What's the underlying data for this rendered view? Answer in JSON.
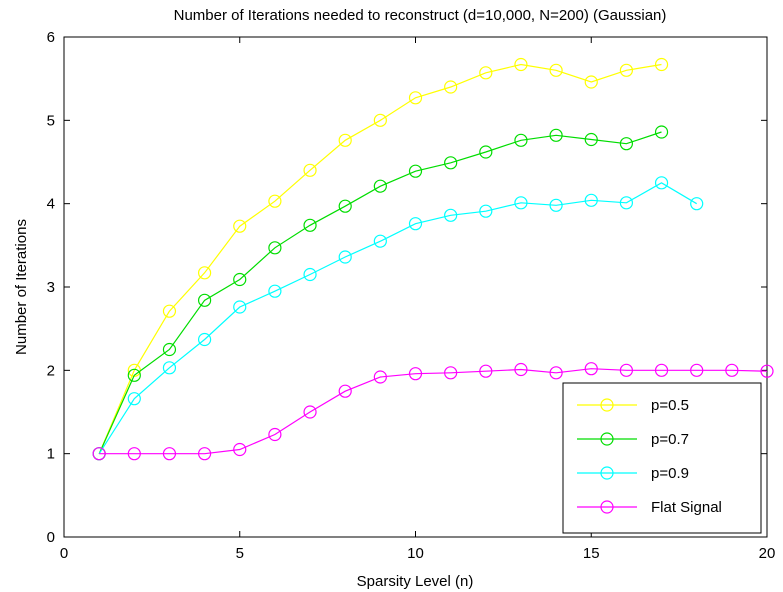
{
  "chart_data": {
    "type": "line",
    "title": "Number of Iterations needed to reconstruct (d=10,000, N=200) (Gaussian)",
    "xlabel": "Sparsity Level (n)",
    "ylabel": "Number of Iterations",
    "xlim": [
      0,
      20
    ],
    "ylim": [
      0,
      6
    ],
    "xticks": [
      0,
      5,
      10,
      15,
      20
    ],
    "yticks": [
      0,
      1,
      2,
      3,
      4,
      5,
      6
    ],
    "grid": false,
    "legend_position": "bottom-right",
    "marker": "circle",
    "series": [
      {
        "name": "p=0.5",
        "color": "#ffff00",
        "x": [
          1,
          2,
          3,
          4,
          5,
          6,
          7,
          8,
          9,
          10,
          11,
          12,
          13,
          14,
          15,
          16,
          17
        ],
        "values": [
          1.0,
          2.0,
          2.71,
          3.17,
          3.73,
          4.03,
          4.4,
          4.76,
          5.0,
          5.27,
          5.4,
          5.57,
          5.67,
          5.6,
          5.46,
          5.6,
          5.67
        ]
      },
      {
        "name": "p=0.7",
        "color": "#00dd00",
        "x": [
          1,
          2,
          3,
          4,
          5,
          6,
          7,
          8,
          9,
          10,
          11,
          12,
          13,
          14,
          15,
          16,
          17
        ],
        "values": [
          1.0,
          1.94,
          2.25,
          2.84,
          3.09,
          3.47,
          3.74,
          3.97,
          4.21,
          4.39,
          4.49,
          4.62,
          4.76,
          4.82,
          4.77,
          4.72,
          4.86
        ]
      },
      {
        "name": "p=0.9",
        "color": "#00ffff",
        "x": [
          1,
          2,
          3,
          4,
          5,
          6,
          7,
          8,
          9,
          10,
          11,
          12,
          13,
          14,
          15,
          16,
          17,
          18
        ],
        "values": [
          1.0,
          1.66,
          2.03,
          2.37,
          2.76,
          2.95,
          3.15,
          3.36,
          3.55,
          3.76,
          3.86,
          3.91,
          4.01,
          3.98,
          4.04,
          4.01,
          4.25,
          4.0
        ]
      },
      {
        "name": "Flat Signal",
        "color": "#ff00ff",
        "x": [
          1,
          2,
          3,
          4,
          5,
          6,
          7,
          8,
          9,
          10,
          11,
          12,
          13,
          14,
          15,
          16,
          17,
          18,
          19,
          20
        ],
        "values": [
          1.0,
          1.0,
          1.0,
          1.0,
          1.05,
          1.23,
          1.5,
          1.75,
          1.92,
          1.96,
          1.97,
          1.99,
          2.01,
          1.97,
          2.02,
          2.0,
          2.0,
          2.0,
          2.0,
          1.99
        ]
      }
    ]
  }
}
